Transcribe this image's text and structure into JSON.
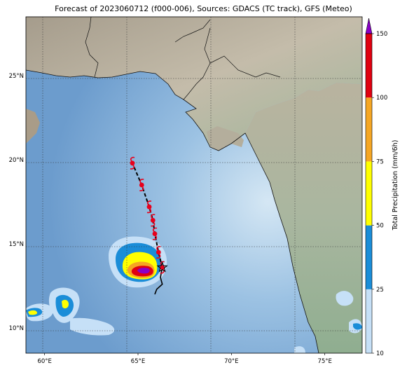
{
  "title": "Forecast of 2023060712 (f000-006), Sources: GDACS (TC track), GFS (Meteo)",
  "map": {
    "lon_range": [
      59,
      77
    ],
    "lat_range": [
      8.5,
      28.5
    ],
    "lon_ticks": [
      {
        "value": 60,
        "label": "60°E"
      },
      {
        "value": 65,
        "label": "65°E"
      },
      {
        "value": 70,
        "label": "70°E"
      },
      {
        "value": 75,
        "label": "75°E"
      }
    ],
    "lat_ticks": [
      {
        "value": 10,
        "label": "10°N"
      },
      {
        "value": 15,
        "label": "15°N"
      },
      {
        "value": 20,
        "label": "20°N"
      },
      {
        "value": 25,
        "label": "25°N"
      }
    ],
    "gridlines": true
  },
  "track": {
    "observed": [
      [
        66.2,
        13.0
      ],
      [
        66.3,
        12.6
      ],
      [
        66.2,
        12.5
      ],
      [
        66.0,
        12.3
      ],
      [
        65.9,
        12.0
      ]
    ],
    "forecast": [
      [
        66.3,
        13.6
      ],
      [
        66.1,
        14.5
      ],
      [
        65.9,
        15.6
      ],
      [
        65.8,
        16.4
      ],
      [
        65.6,
        17.2
      ],
      [
        65.2,
        18.5
      ],
      [
        64.7,
        19.8
      ]
    ],
    "current_position": [
      66.3,
      13.6
    ],
    "symbol_color": "#e8001c"
  },
  "colorbar": {
    "label": "Total Precipitation (mm/6h)",
    "levels": [
      10,
      25,
      50,
      75,
      100,
      150
    ],
    "tick_labels": [
      "10",
      "25",
      "50",
      "75",
      "100",
      "150"
    ],
    "colors": [
      "#c6e0f7",
      "#1a8dd8",
      "#ffff00",
      "#f5a623",
      "#e00010"
    ],
    "extend_color": "#8a00c8"
  },
  "colors": {
    "ocean_deep": "#6e9ecf",
    "ocean_shallow": "#c7dff0",
    "land": "#b6ad9c",
    "land_green": "#8fae90"
  }
}
